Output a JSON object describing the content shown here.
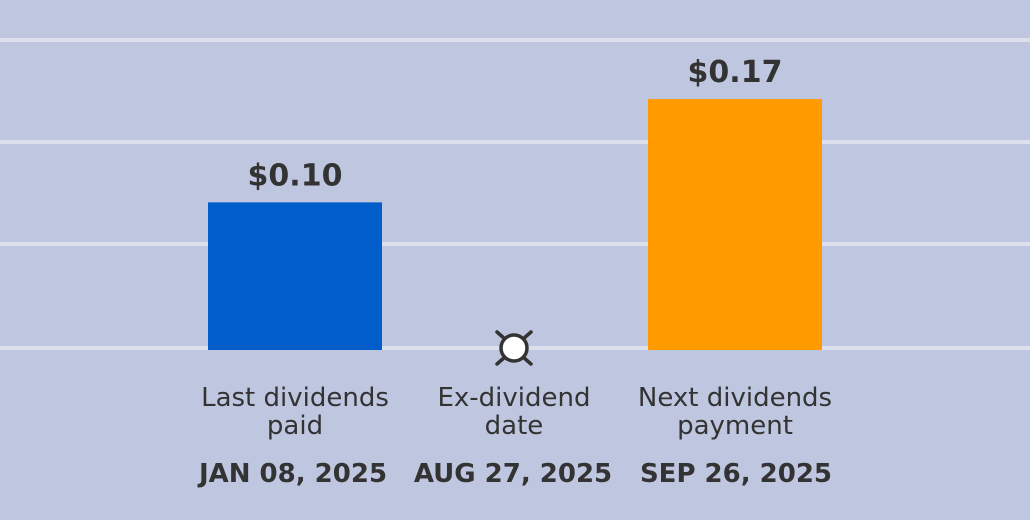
{
  "chart_data": {
    "type": "bar",
    "categories": [
      [
        "Last dividends",
        "paid"
      ],
      [
        "Ex-dividend",
        "date"
      ],
      [
        "Next dividends",
        "payment"
      ]
    ],
    "dates": [
      "JAN 08, 2025",
      "AUG 27, 2025",
      "SEP 26, 2025"
    ],
    "values": [
      0.1,
      null,
      0.17
    ],
    "value_labels": [
      "$0.10",
      "",
      "$0.17"
    ],
    "ylim": [
      0,
      0.21
    ],
    "grid": true,
    "colors": {
      "last": "#005dc9",
      "next": "#ff9a00",
      "grid": "#dde0ec",
      "background": "#bfc6e0",
      "text": "#333333",
      "marker_fill": "#ffffff"
    },
    "ex_dividend_marker": "sun-icon"
  }
}
